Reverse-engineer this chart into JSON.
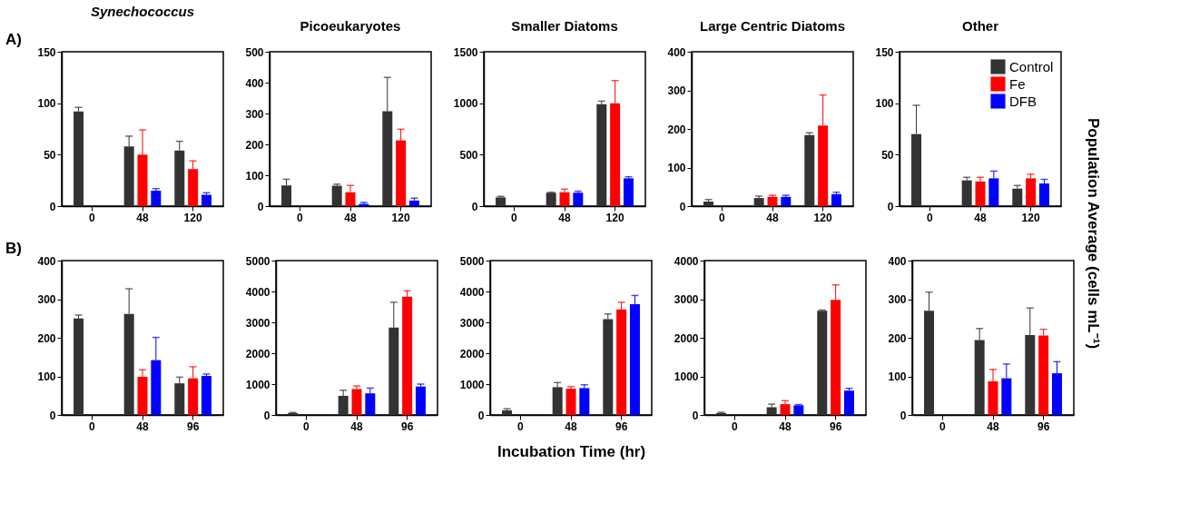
{
  "chart_data": [
    {
      "type": "bar",
      "title": "Synechococcus",
      "annotations": [
        "A)"
      ],
      "categories": [
        "0",
        "48",
        "120"
      ],
      "ylim": [
        0,
        150
      ],
      "yticks": [
        0,
        50,
        100,
        150
      ],
      "series": [
        {
          "color": "#333333",
          "values": [
            92,
            58,
            54
          ],
          "errors": [
            [
              92,
              96
            ],
            [
              58,
              68
            ],
            [
              54,
              63
            ]
          ]
        },
        {
          "color": "#ff0000",
          "values": [
            null,
            50,
            36
          ],
          "errors": [
            null,
            [
              50,
              74
            ],
            [
              36,
              44
            ]
          ]
        },
        {
          "color": "#0000ff",
          "values": [
            null,
            15,
            11
          ],
          "errors": [
            null,
            [
              15,
              17
            ],
            [
              11,
              13
            ]
          ]
        }
      ]
    },
    {
      "type": "bar",
      "title": "Picoeukaryotes",
      "categories": [
        "0",
        "48",
        "120"
      ],
      "ylim": [
        0,
        500
      ],
      "yticks": [
        0,
        100,
        200,
        300,
        400,
        500
      ],
      "series": [
        {
          "color": "#333333",
          "values": [
            67,
            66,
            307
          ],
          "errors": [
            [
              67,
              87
            ],
            [
              66,
              71
            ],
            [
              307,
              417
            ]
          ]
        },
        {
          "color": "#ff0000",
          "values": [
            null,
            45,
            213
          ],
          "errors": [
            null,
            [
              45,
              67
            ],
            [
              213,
              249
            ]
          ]
        },
        {
          "color": "#0000ff",
          "values": [
            null,
            7,
            18
          ],
          "errors": [
            null,
            [
              7,
              12
            ],
            [
              18,
              26
            ]
          ]
        }
      ]
    },
    {
      "type": "bar",
      "title": "Smaller Diatoms",
      "categories": [
        "0",
        "48",
        "120"
      ],
      "ylim": [
        0,
        1500
      ],
      "yticks": [
        0,
        500,
        1000,
        1500
      ],
      "series": [
        {
          "color": "#333333",
          "values": [
            85,
            130,
            990
          ],
          "errors": [
            [
              85,
              95
            ],
            [
              130,
              135
            ],
            [
              990,
              1020
            ]
          ]
        },
        {
          "color": "#ff0000",
          "values": [
            null,
            135,
            1000
          ],
          "errors": [
            null,
            [
              135,
              165
            ],
            [
              1000,
              1220
            ]
          ]
        },
        {
          "color": "#0000ff",
          "values": [
            null,
            130,
            270
          ],
          "errors": [
            null,
            [
              130,
              145
            ],
            [
              270,
              285
            ]
          ]
        }
      ]
    },
    {
      "type": "bar",
      "title": "Large Centric Diatoms",
      "categories": [
        "0",
        "48",
        "120"
      ],
      "ylim": [
        0,
        400
      ],
      "yticks": [
        0,
        100,
        200,
        300,
        400
      ],
      "series": [
        {
          "color": "#333333",
          "values": [
            12,
            21,
            184
          ],
          "errors": [
            [
              12,
              17
            ],
            [
              21,
              26
            ],
            [
              184,
              190
            ]
          ]
        },
        {
          "color": "#ff0000",
          "values": [
            null,
            24,
            209
          ],
          "errors": [
            null,
            [
              24,
              28
            ],
            [
              209,
              288
            ]
          ]
        },
        {
          "color": "#0000ff",
          "values": [
            null,
            24,
            31
          ],
          "errors": [
            null,
            [
              24,
              28
            ],
            [
              31,
              36
            ]
          ]
        }
      ]
    },
    {
      "type": "bar",
      "title": "Other",
      "annotations": [
        "Population Average (cells mL⁻¹)"
      ],
      "legend": "top right",
      "categories": [
        "0",
        "48",
        "120"
      ],
      "ylim": [
        0,
        150
      ],
      "yticks": [
        0,
        50,
        100,
        150
      ],
      "series": [
        {
          "name": "Control",
          "color": "#333333",
          "values": [
            70,
            25,
            17
          ],
          "errors": [
            [
              70,
              98
            ],
            [
              25,
              28
            ],
            [
              17,
              20
            ]
          ]
        },
        {
          "name": "Fe",
          "color": "#ff0000",
          "values": [
            null,
            24,
            27
          ],
          "errors": [
            null,
            [
              24,
              28
            ],
            [
              27,
              31
            ]
          ]
        },
        {
          "name": "DFB",
          "color": "#0000ff",
          "values": [
            null,
            27,
            22
          ],
          "errors": [
            null,
            [
              27,
              34
            ],
            [
              22,
              26
            ]
          ]
        }
      ]
    },
    {
      "type": "bar",
      "annotations": [
        "B)"
      ],
      "categories": [
        "0",
        "48",
        "96"
      ],
      "ylim": [
        0,
        400
      ],
      "yticks": [
        0,
        100,
        200,
        300,
        400
      ],
      "series": [
        {
          "color": "#333333",
          "values": [
            250,
            262,
            82
          ],
          "errors": [
            [
              250,
              259
            ],
            [
              262,
              327
            ],
            [
              82,
              98
            ]
          ]
        },
        {
          "color": "#ff0000",
          "values": [
            null,
            99,
            95
          ],
          "errors": [
            null,
            [
              99,
              117
            ],
            [
              95,
              125
            ]
          ]
        },
        {
          "color": "#0000ff",
          "values": [
            null,
            142,
            101
          ],
          "errors": [
            null,
            [
              142,
              201
            ],
            [
              101,
              106
            ]
          ]
        }
      ]
    },
    {
      "type": "bar",
      "categories": [
        "0",
        "48",
        "96"
      ],
      "ylim": [
        0,
        5000
      ],
      "yticks": [
        0,
        1000,
        2000,
        3000,
        4000,
        5000
      ],
      "series": [
        {
          "color": "#333333",
          "values": [
            60,
            620,
            2830
          ],
          "errors": [
            [
              60,
              80
            ],
            [
              620,
              800
            ],
            [
              2830,
              3650
            ]
          ]
        },
        {
          "color": "#ff0000",
          "values": [
            null,
            840,
            3830
          ],
          "errors": [
            null,
            [
              840,
              940
            ],
            [
              3830,
              4020
            ]
          ]
        },
        {
          "color": "#0000ff",
          "values": [
            null,
            700,
            920
          ],
          "errors": [
            null,
            [
              700,
              870
            ],
            [
              920,
              1000
            ]
          ]
        }
      ]
    },
    {
      "type": "bar",
      "xlabel": "Incubation Time (hr)",
      "categories": [
        "0",
        "48",
        "96"
      ],
      "ylim": [
        0,
        5000
      ],
      "yticks": [
        0,
        1000,
        2000,
        3000,
        4000,
        5000
      ],
      "series": [
        {
          "color": "#333333",
          "values": [
            150,
            900,
            3100
          ],
          "errors": [
            [
              150,
              200
            ],
            [
              900,
              1050
            ],
            [
              3100,
              3270
            ]
          ]
        },
        {
          "color": "#ff0000",
          "values": [
            null,
            850,
            3420
          ],
          "errors": [
            null,
            [
              850,
              920
            ],
            [
              3420,
              3650
            ]
          ]
        },
        {
          "color": "#0000ff",
          "values": [
            null,
            870,
            3590
          ],
          "errors": [
            null,
            [
              870,
              980
            ],
            [
              3590,
              3870
            ]
          ]
        }
      ]
    },
    {
      "type": "bar",
      "categories": [
        "0",
        "48",
        "96"
      ],
      "ylim": [
        0,
        4000
      ],
      "yticks": [
        0,
        1000,
        2000,
        3000,
        4000
      ],
      "series": [
        {
          "color": "#333333",
          "values": [
            50,
            200,
            2700
          ],
          "errors": [
            [
              50,
              70
            ],
            [
              200,
              280
            ],
            [
              2700,
              2720
            ]
          ]
        },
        {
          "color": "#ff0000",
          "values": [
            null,
            280,
            2980
          ],
          "errors": [
            null,
            [
              280,
              370
            ],
            [
              2980,
              3370
            ]
          ]
        },
        {
          "color": "#0000ff",
          "values": [
            null,
            250,
            630
          ],
          "errors": [
            null,
            [
              250,
              270
            ],
            [
              630,
              690
            ]
          ]
        }
      ]
    },
    {
      "type": "bar",
      "categories": [
        "0",
        "48",
        "96"
      ],
      "ylim": [
        0,
        400
      ],
      "yticks": [
        0,
        100,
        200,
        300,
        400
      ],
      "series": [
        {
          "color": "#333333",
          "values": [
            270,
            194,
            207
          ],
          "errors": [
            [
              270,
              318
            ],
            [
              194,
              224
            ],
            [
              207,
              277
            ]
          ]
        },
        {
          "color": "#ff0000",
          "values": [
            null,
            87,
            206
          ],
          "errors": [
            null,
            [
              87,
              118
            ],
            [
              206,
              222
            ]
          ]
        },
        {
          "color": "#0000ff",
          "values": [
            null,
            95,
            108
          ],
          "errors": [
            null,
            [
              95,
              132
            ],
            [
              108,
              138
            ]
          ]
        }
      ]
    }
  ]
}
